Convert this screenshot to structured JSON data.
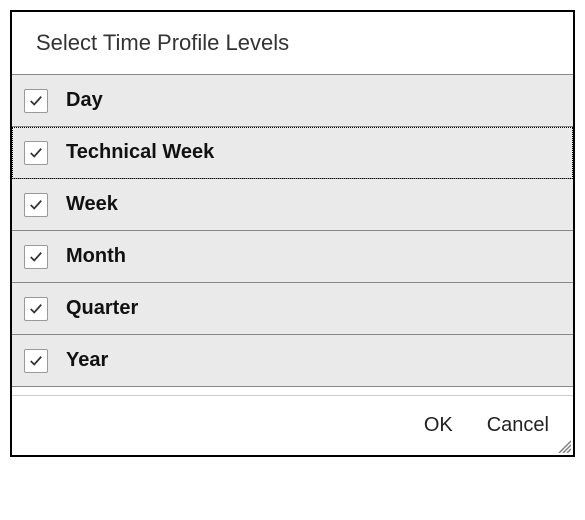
{
  "dialog": {
    "title": "Select Time Profile Levels",
    "list": [
      {
        "label": "Day",
        "checked": true,
        "focused": false
      },
      {
        "label": "Technical Week",
        "checked": true,
        "focused": true
      },
      {
        "label": "Week",
        "checked": true,
        "focused": false
      },
      {
        "label": "Month",
        "checked": true,
        "focused": false
      },
      {
        "label": "Quarter",
        "checked": true,
        "focused": false
      },
      {
        "label": "Year",
        "checked": true,
        "focused": false
      }
    ],
    "buttons": {
      "ok": "OK",
      "cancel": "Cancel"
    },
    "style": {
      "row_background": "#eaeaea",
      "border_color": "#888888",
      "outer_border_color": "#000000",
      "title_color": "#333333",
      "label_color": "#111111",
      "label_fontsize": 20,
      "title_fontsize": 22
    }
  }
}
